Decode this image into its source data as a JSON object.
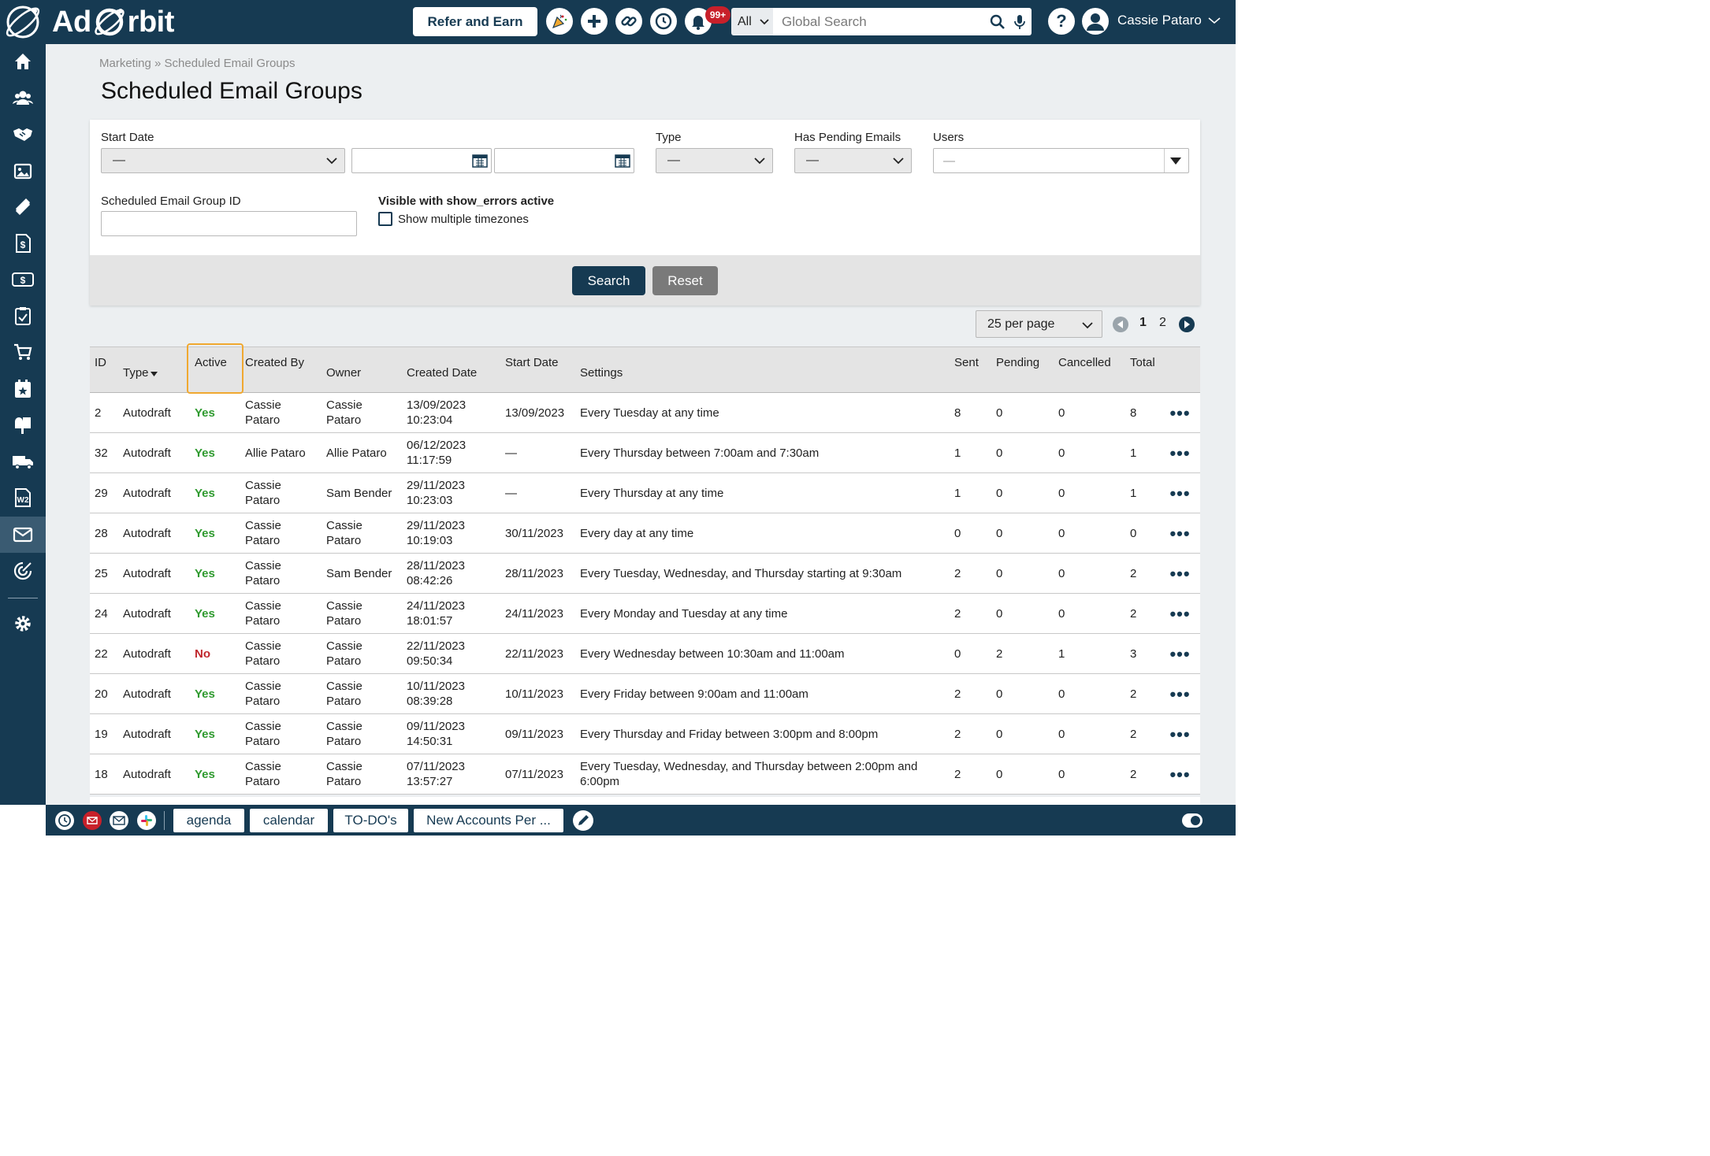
{
  "app": {
    "name_left": "Ad",
    "name_right": "rbit"
  },
  "header": {
    "refer_label": "Refer and Earn",
    "notifications_badge": "99+",
    "search_scope": "All",
    "search_placeholder": "Global Search",
    "help_label": "?",
    "user_name": "Cassie Pataro"
  },
  "sidebar": {
    "items": [
      "home-icon",
      "contacts-icon",
      "handshake-icon",
      "media-icon",
      "ticket-icon",
      "invoice-icon",
      "billing-icon",
      "tasks-icon",
      "cart-icon",
      "calendar-icon",
      "mailbox-icon",
      "delivery-icon",
      "w2-icon",
      "email-icon",
      "circulation-icon",
      "settings-icon"
    ],
    "active": "email-icon"
  },
  "breadcrumb": {
    "parent": "Marketing",
    "separator": "»",
    "current": "Scheduled Email Groups"
  },
  "page_title": "Scheduled Email Groups",
  "filters": {
    "start_date_label": "Start Date",
    "start_date_value": "—",
    "type_label": "Type",
    "type_value": "—",
    "pending_label": "Has Pending Emails",
    "pending_value": "—",
    "users_label": "Users",
    "users_value": "—",
    "group_id_label": "Scheduled Email Group ID",
    "errors_label": "Visible with show_errors active",
    "timezones_label": "Show multiple timezones",
    "search_label": "Search",
    "reset_label": "Reset"
  },
  "pagination": {
    "per_page": "25 per page",
    "page1": "1",
    "page2": "2"
  },
  "table": {
    "headers": {
      "id": "ID",
      "type": "Type",
      "active": "Active",
      "created_by": "Created By",
      "owner": "Owner",
      "created_date": "Created Date",
      "start_date": "Start Date",
      "settings": "Settings",
      "sent": "Sent",
      "pending": "Pending",
      "cancelled": "Cancelled",
      "total": "Total"
    },
    "rows": [
      {
        "id": "2",
        "type": "Autodraft",
        "active": "Yes",
        "created_by": "Cassie Pataro",
        "owner": "Cassie Pataro",
        "created_date": "13/09/2023",
        "created_time": "10:23:04",
        "start_date": "13/09/2023",
        "settings": "Every Tuesday at any time",
        "sent": "8",
        "pending": "0",
        "cancelled": "0",
        "total": "8"
      },
      {
        "id": "32",
        "type": "Autodraft",
        "active": "Yes",
        "created_by": "Allie Pataro",
        "owner": "Allie Pataro",
        "created_date": "06/12/2023",
        "created_time": "11:17:59",
        "start_date": "—",
        "settings": "Every Thursday between 7:00am and 7:30am",
        "sent": "1",
        "pending": "0",
        "cancelled": "0",
        "total": "1"
      },
      {
        "id": "29",
        "type": "Autodraft",
        "active": "Yes",
        "created_by": "Cassie Pataro",
        "owner": "Sam Bender",
        "created_date": "29/11/2023",
        "created_time": "10:23:03",
        "start_date": "—",
        "settings": "Every Thursday at any time",
        "sent": "1",
        "pending": "0",
        "cancelled": "0",
        "total": "1"
      },
      {
        "id": "28",
        "type": "Autodraft",
        "active": "Yes",
        "created_by": "Cassie Pataro",
        "owner": "Cassie Pataro",
        "created_date": "29/11/2023",
        "created_time": "10:19:03",
        "start_date": "30/11/2023",
        "settings": "Every day at any time",
        "sent": "0",
        "pending": "0",
        "cancelled": "0",
        "total": "0"
      },
      {
        "id": "25",
        "type": "Autodraft",
        "active": "Yes",
        "created_by": "Cassie Pataro",
        "owner": "Sam Bender",
        "created_date": "28/11/2023",
        "created_time": "08:42:26",
        "start_date": "28/11/2023",
        "settings": "Every Tuesday, Wednesday, and Thursday starting at 9:30am",
        "sent": "2",
        "pending": "0",
        "cancelled": "0",
        "total": "2"
      },
      {
        "id": "24",
        "type": "Autodraft",
        "active": "Yes",
        "created_by": "Cassie Pataro",
        "owner": "Cassie Pataro",
        "created_date": "24/11/2023",
        "created_time": "18:01:57",
        "start_date": "24/11/2023",
        "settings": "Every Monday and Tuesday at any time",
        "sent": "2",
        "pending": "0",
        "cancelled": "0",
        "total": "2"
      },
      {
        "id": "22",
        "type": "Autodraft",
        "active": "No",
        "created_by": "Cassie Pataro",
        "owner": "Cassie Pataro",
        "created_date": "22/11/2023",
        "created_time": "09:50:34",
        "start_date": "22/11/2023",
        "settings": "Every Wednesday between 10:30am and 11:00am",
        "sent": "0",
        "pending": "2",
        "cancelled": "1",
        "total": "3"
      },
      {
        "id": "20",
        "type": "Autodraft",
        "active": "Yes",
        "created_by": "Cassie Pataro",
        "owner": "Cassie Pataro",
        "created_date": "10/11/2023",
        "created_time": "08:39:28",
        "start_date": "10/11/2023",
        "settings": "Every Friday between 9:00am and 11:00am",
        "sent": "2",
        "pending": "0",
        "cancelled": "0",
        "total": "2"
      },
      {
        "id": "19",
        "type": "Autodraft",
        "active": "Yes",
        "created_by": "Cassie Pataro",
        "owner": "Cassie Pataro",
        "created_date": "09/11/2023",
        "created_time": "14:50:31",
        "start_date": "09/11/2023",
        "settings": "Every Thursday and Friday between 3:00pm and 8:00pm",
        "sent": "2",
        "pending": "0",
        "cancelled": "0",
        "total": "2"
      },
      {
        "id": "18",
        "type": "Autodraft",
        "active": "Yes",
        "created_by": "Cassie Pataro",
        "owner": "Cassie Pataro",
        "created_date": "07/11/2023",
        "created_time": "13:57:27",
        "start_date": "07/11/2023",
        "settings": "Every Tuesday, Wednesday, and Thursday between 2:00pm and 6:00pm",
        "sent": "2",
        "pending": "0",
        "cancelled": "0",
        "total": "2"
      }
    ]
  },
  "bottombar": {
    "tabs": [
      "agenda",
      "calendar",
      "TO-DO's",
      "New Accounts Per ..."
    ]
  },
  "colors": {
    "navy": "#163a52",
    "active_yes": "#2e9a2e",
    "active_no": "#c0272d",
    "highlight": "#f0a830",
    "badge": "#c8202a"
  }
}
